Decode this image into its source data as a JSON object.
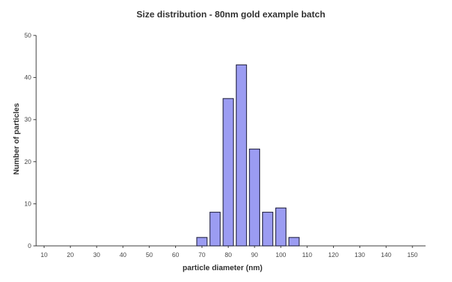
{
  "chart_data": {
    "type": "bar",
    "title": "Size distribution - 80nm gold example batch",
    "xlabel": "particle diameter (nm)",
    "ylabel": "Number of particles",
    "xlim": [
      7,
      155
    ],
    "ylim": [
      0,
      50
    ],
    "x_ticks": [
      10,
      20,
      30,
      40,
      50,
      60,
      70,
      80,
      90,
      100,
      110,
      120,
      130,
      140,
      150
    ],
    "y_ticks": [
      0,
      10,
      20,
      30,
      40,
      50
    ],
    "bars": [
      {
        "x": 70,
        "value": 2
      },
      {
        "x": 75,
        "value": 8
      },
      {
        "x": 80,
        "value": 35
      },
      {
        "x": 85,
        "value": 43
      },
      {
        "x": 90,
        "value": 23
      },
      {
        "x": 95,
        "value": 8
      },
      {
        "x": 100,
        "value": 9
      },
      {
        "x": 105,
        "value": 2
      }
    ],
    "bar_color": "#9b9cf2",
    "grid": false
  }
}
